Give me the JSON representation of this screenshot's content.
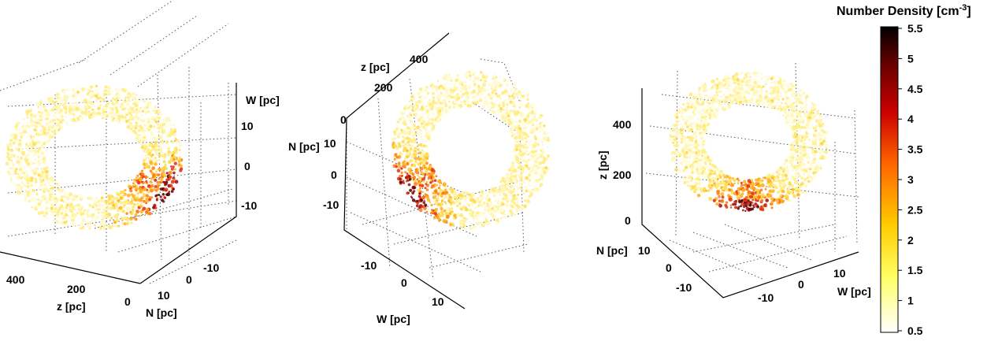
{
  "colorbar": {
    "title": "Number Density [cm",
    "title_sup": "-3",
    "title_end": "]",
    "ticks": [
      "5.5",
      "5",
      "4.5",
      "4",
      "3.5",
      "3",
      "2.5",
      "2",
      "1.5",
      "1",
      "0.5"
    ],
    "range": [
      0.5,
      5.5
    ],
    "colormap": "hot (reversed)",
    "colors": [
      "#ffffff",
      "#ffff66",
      "#ffcc00",
      "#ff6600",
      "#cc0000",
      "#660000",
      "#000000"
    ]
  },
  "panels": [
    {
      "w_label": "W [pc]",
      "w_ticks": [
        "10",
        "0",
        "-10"
      ],
      "z_label": "z [pc]",
      "z_ticks": [
        "400",
        "200",
        "0"
      ],
      "n_label": "N [pc]",
      "n_ticks": [
        "10",
        "0",
        "-10"
      ]
    },
    {
      "z_label": "z [pc]",
      "z_ticks": [
        "400",
        "200",
        "0"
      ],
      "n_label": "N [pc]",
      "n_ticks": [
        "10",
        "0",
        "-10"
      ],
      "w_label": "W [pc]",
      "w_ticks": [
        "-10",
        "0",
        "10"
      ]
    },
    {
      "z_label": "z [pc]",
      "z_ticks": [
        "400",
        "200",
        "0"
      ],
      "n_label": "N [pc]",
      "n_ticks": [
        "10",
        "0",
        "-10"
      ],
      "w_label": "W [pc]",
      "w_ticks": [
        "-10",
        "0",
        "10"
      ]
    }
  ],
  "chart_data": {
    "type": "scatter",
    "description_units": "3D scatter of number density on a shell, three viewing angles",
    "axes": {
      "z": {
        "label": "z [pc]",
        "ticks": [
          0,
          200,
          400
        ]
      },
      "N": {
        "label": "N [pc]",
        "ticks": [
          -10,
          0,
          10
        ]
      },
      "W": {
        "label": "W [pc]",
        "ticks": [
          -10,
          0,
          10
        ]
      }
    },
    "color_scale": {
      "label": "Number Density [cm^-3]",
      "min": 0.5,
      "max": 5.5
    }
  }
}
